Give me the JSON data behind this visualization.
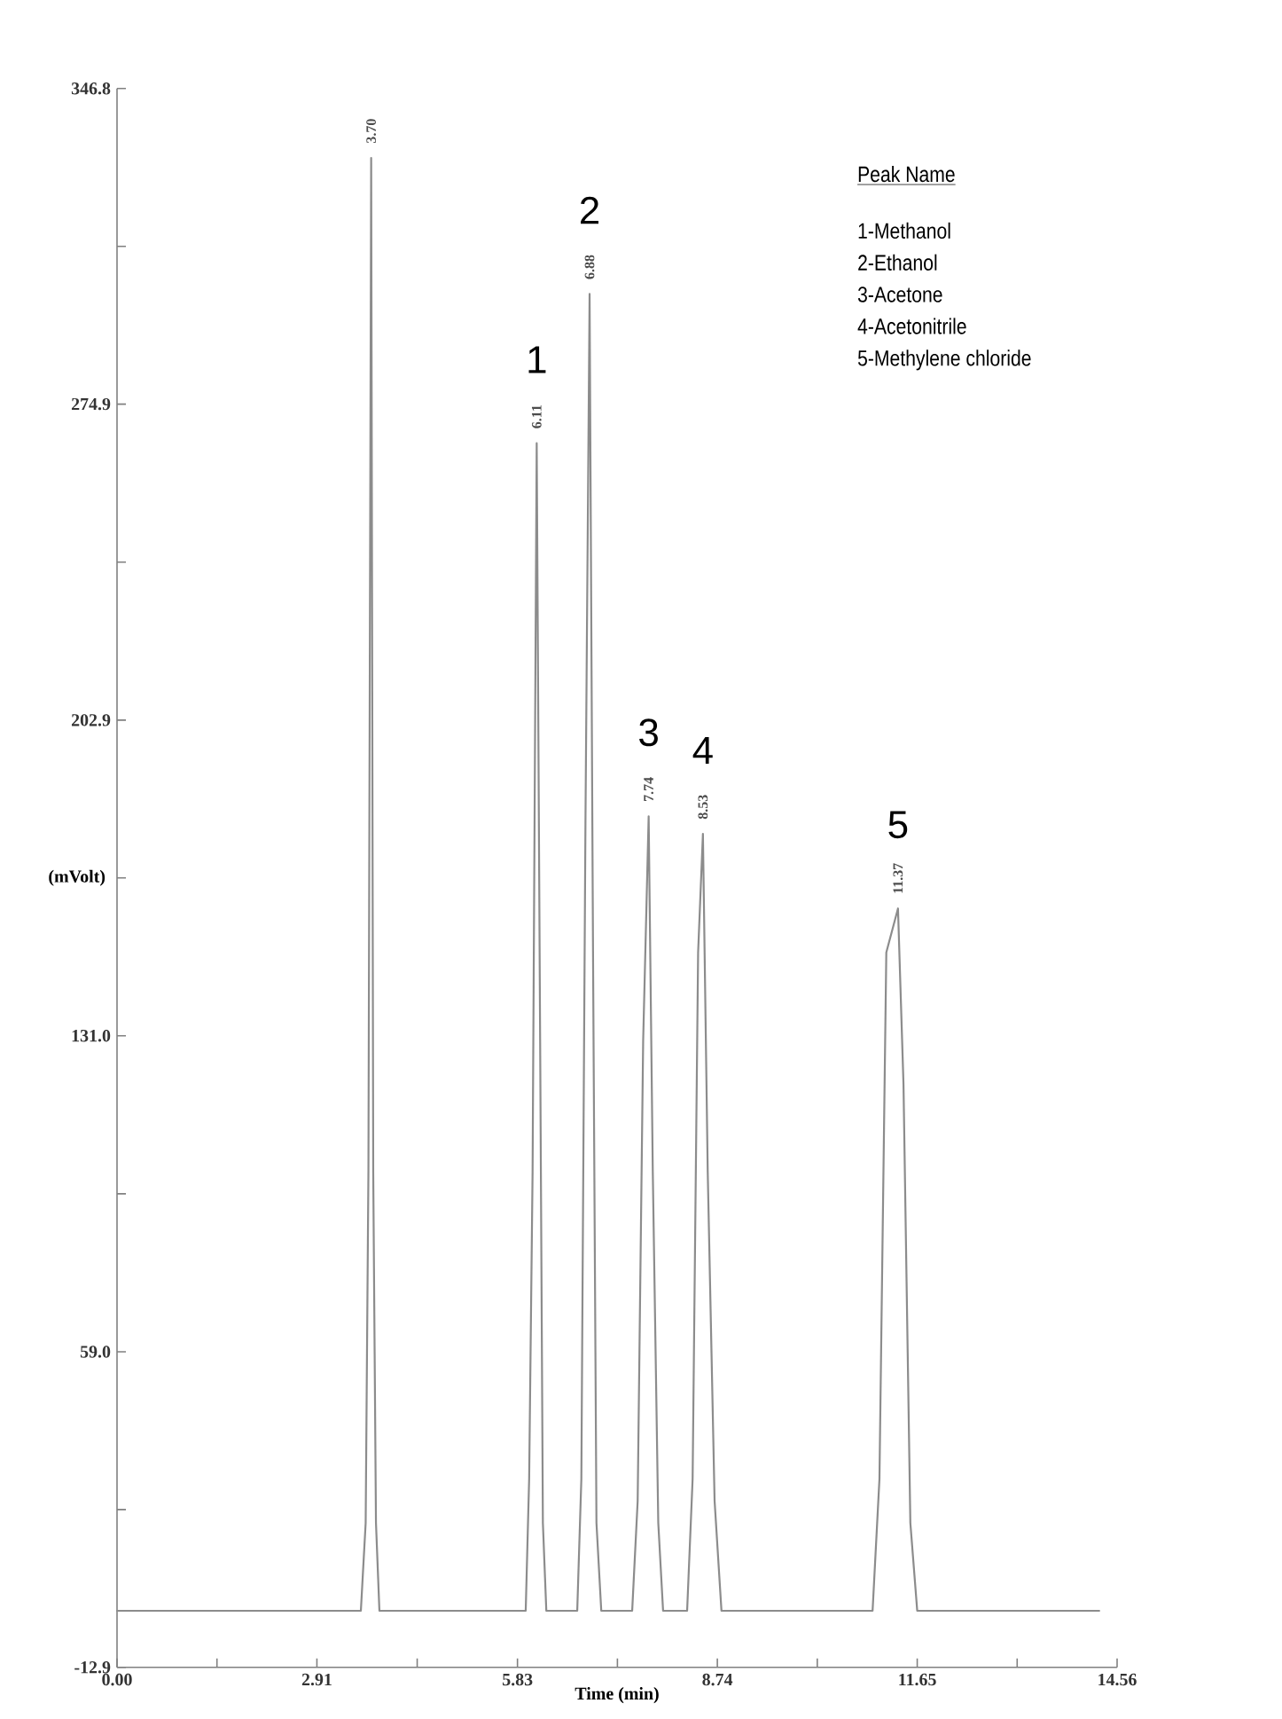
{
  "chart_data": {
    "type": "line",
    "xlabel": "Time (min)",
    "ylabel": "(mVolt)",
    "legend_title": "Peak Name",
    "x": [
      0,
      3.55,
      3.62,
      3.66,
      3.7,
      3.73,
      3.77,
      3.82,
      5.95,
      6.0,
      6.05,
      6.11,
      6.16,
      6.2,
      6.25,
      6.7,
      6.76,
      6.82,
      6.88,
      6.93,
      6.98,
      7.05,
      7.5,
      7.58,
      7.66,
      7.74,
      7.8,
      7.88,
      7.95,
      8.3,
      8.38,
      8.46,
      8.53,
      8.6,
      8.7,
      8.8,
      11.0,
      11.1,
      11.2,
      11.37,
      11.45,
      11.55,
      11.65,
      14.3
    ],
    "values": [
      0,
      0,
      20,
      100,
      331,
      100,
      20,
      0,
      0,
      30,
      100,
      266,
      130,
      20,
      0,
      0,
      30,
      180,
      300,
      150,
      20,
      0,
      0,
      25,
      130,
      181,
      100,
      20,
      0,
      0,
      30,
      150,
      177,
      100,
      25,
      0,
      0,
      30,
      150,
      160,
      120,
      20,
      0,
      0
    ],
    "color": "#8c8c8c",
    "xlim": [
      0,
      14.56
    ],
    "ylim": [
      -12.9,
      346.8
    ],
    "xticks": [
      {
        "value": 0,
        "label": "0.00"
      },
      {
        "value": 1.455,
        "label": null
      },
      2.91,
      {
        "value": 4.37,
        "label": null
      },
      5.83,
      {
        "value": 7.285,
        "label": null
      },
      8.74,
      {
        "value": 10.195,
        "label": null
      },
      11.65,
      {
        "value": 13.105,
        "label": null
      },
      14.56
    ],
    "yticks": [
      -12.9,
      {
        "value": 23.05,
        "label": null
      },
      {
        "value": 59.0,
        "label": "59.0"
      },
      {
        "value": 95.0,
        "label": null
      },
      {
        "value": 131.0,
        "label": "131.0"
      },
      {
        "value": 166.95,
        "label": null
      },
      202.9,
      {
        "value": 238.9,
        "label": null
      },
      274.9,
      {
        "value": 310.85,
        "label": null
      },
      346.8
    ],
    "annotations": [
      {
        "text": "3.70",
        "x": 3.7,
        "y": 331
      },
      {
        "text": "6.11",
        "x": 6.11,
        "y": 266
      },
      {
        "text": "1",
        "x": 6.11,
        "y": 266
      },
      {
        "text": "6.88",
        "x": 6.88,
        "y": 300
      },
      {
        "text": "2",
        "x": 6.88,
        "y": 300
      },
      {
        "text": "7.74",
        "x": 7.74,
        "y": 181
      },
      {
        "text": "3",
        "x": 7.74,
        "y": 181
      },
      {
        "text": "8.53",
        "x": 8.53,
        "y": 177
      },
      {
        "text": "4",
        "x": 8.53,
        "y": 177
      },
      {
        "text": "11.37",
        "x": 11.37,
        "y": 160
      },
      {
        "text": "5",
        "x": 11.37,
        "y": 160
      },
      "1-Methanol",
      "2-Ethanol",
      "3-Acetone",
      "4-Acetonitrile",
      "5-Methylene chloride"
    ]
  }
}
